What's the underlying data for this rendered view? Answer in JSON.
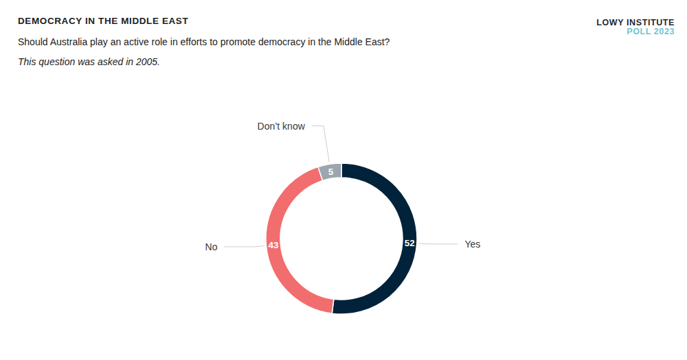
{
  "chart_data": {
    "type": "pie",
    "title": "DEMOCRACY IN THE MIDDLE EAST",
    "subtitle": "Should Australia play an active role in efforts to promote democracy in the Middle East?",
    "note": "This question was asked in 2005.",
    "brand": "LOWY INSTITUTE",
    "brand_subtitle": "POLL 2023",
    "categories": [
      "Yes",
      "No",
      "Don’t know"
    ],
    "values": [
      52,
      43,
      5
    ],
    "colors": [
      "#00223a",
      "#f26d6d",
      "#9ba6ae"
    ],
    "data_labels": true
  }
}
